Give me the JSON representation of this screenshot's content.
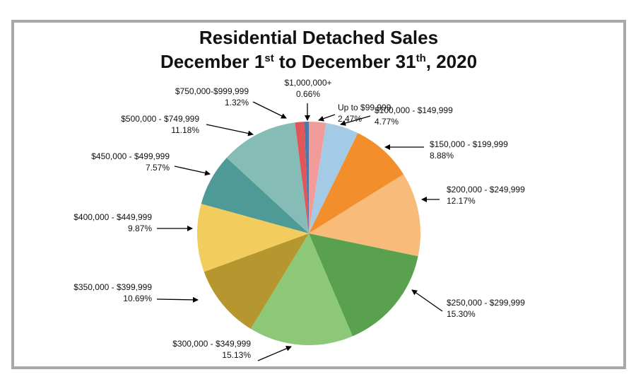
{
  "chart_data": {
    "type": "pie",
    "title": "Residential Detached Sales",
    "subtitle": [
      {
        "text": "December 1"
      },
      {
        "text": "st",
        "sup": true
      },
      {
        "text": " to December 31"
      },
      {
        "text": "th",
        "sup": true
      },
      {
        "text": ", 2020"
      }
    ],
    "categories": [
      "Up to $99,999",
      "$100,000 - $149,999",
      "$150,000 - $199,999",
      "$200,000 - $249,999",
      "$250,000 - $299,999",
      "$300,000 - $349,999",
      "$350,000 - $399,999",
      "$400,000 - $449,999",
      "$450,000 - $499,999",
      "$500,000 - $749,999",
      "$750,000-$999,999",
      "$1,000,000+"
    ],
    "values": [
      2.47,
      4.77,
      8.88,
      12.17,
      15.3,
      15.13,
      10.69,
      9.87,
      7.57,
      11.18,
      1.32,
      0.66
    ],
    "value_labels": [
      "2.47%",
      "4.77%",
      "8.88%",
      "12.17%",
      "15.30%",
      "15.13%",
      "10.69%",
      "9.87%",
      "7.57%",
      "11.18%",
      "1.32%",
      "0.66%"
    ],
    "colors": [
      "#f29b9b",
      "#a4cbe6",
      "#f28e2b",
      "#f9bb7a",
      "#59a14f",
      "#8cc878",
      "#b5962f",
      "#f2cc5c",
      "#4e9a96",
      "#86bcb6",
      "#e15759",
      "#4e79a7"
    ]
  }
}
